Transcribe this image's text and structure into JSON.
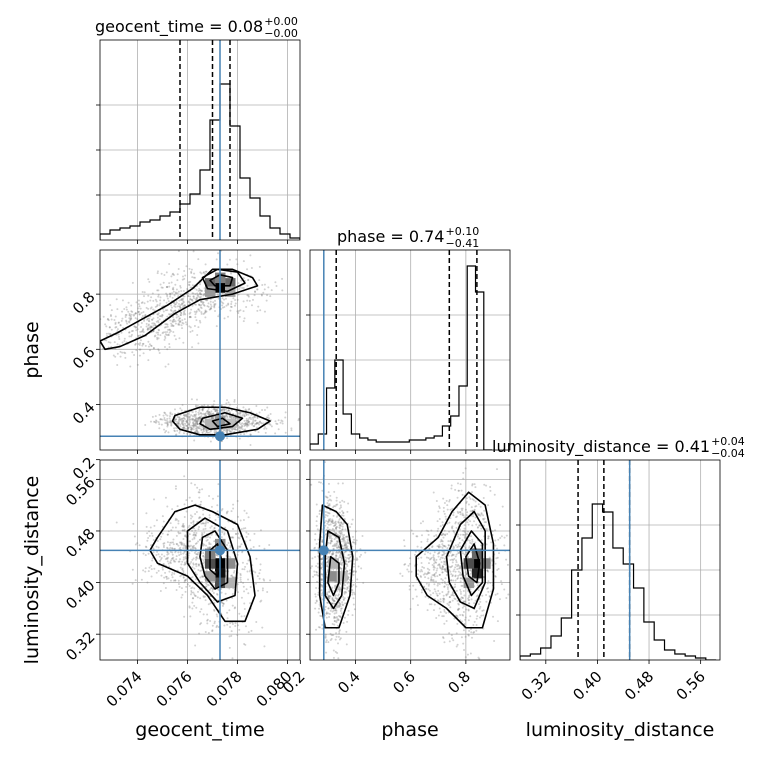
{
  "chart_data": {
    "type": "corner",
    "parameters": [
      "geocent_time",
      "phase",
      "luminosity_distance"
    ],
    "truth_color": "#4682b4",
    "truths": {
      "geocent_time": 0.0773,
      "phase": 0.285,
      "luminosity_distance": 0.45
    },
    "ranges": {
      "geocent_time": [
        0.0725,
        0.0805
      ],
      "phase": [
        0.235,
        0.96
      ],
      "luminosity_distance": [
        0.28,
        0.59
      ]
    },
    "ticks": {
      "geocent_time": [
        0.074,
        0.076,
        0.078,
        0.08
      ],
      "phase": [
        0.2,
        0.4,
        0.6,
        0.8
      ],
      "luminosity_distance": [
        0.32,
        0.4,
        0.48,
        0.56
      ]
    },
    "tick_labels": {
      "geocent_time": [
        "0.074",
        "0.076",
        "0.078",
        "0.080"
      ],
      "phase_x": [
        "0.2",
        "0.4",
        "0.6",
        "0.8"
      ],
      "phase_y": [
        "0.2",
        "0.4",
        "0.6",
        "0.8"
      ],
      "luminosity_distance_x": [
        "0.32",
        "0.40",
        "0.48",
        "0.56"
      ],
      "luminosity_distance_y": [
        "0.32",
        "0.40",
        "0.48",
        "0.56"
      ]
    },
    "axis_labels": {
      "geocent_time": "geocent_time",
      "phase": "phase",
      "luminosity_distance": "luminosity_distance"
    },
    "titles": [
      {
        "param": "geocent_time",
        "text": "geocent_time = 0.08",
        "plus": "+0.00",
        "minus": "−0.00"
      },
      {
        "param": "phase",
        "text": "phase = 0.74",
        "plus": "+0.10",
        "minus": "−0.41"
      },
      {
        "param": "luminosity_distance",
        "text": "luminosity_distance = 0.41",
        "plus": "+0.04",
        "minus": "−0.04"
      }
    ],
    "quantiles": {
      "geocent_time": [
        0.0757,
        0.077,
        0.0777
      ],
      "phase": [
        0.33,
        0.74,
        0.84
      ],
      "luminosity_distance": [
        0.37,
        0.41,
        0.45
      ]
    },
    "histograms": {
      "geocent_time": {
        "edges": [
          0.0725,
          0.0729,
          0.0733,
          0.0737,
          0.0741,
          0.0745,
          0.0749,
          0.0753,
          0.0757,
          0.0761,
          0.0765,
          0.0769,
          0.0773,
          0.0777,
          0.0781,
          0.0785,
          0.0789,
          0.0793,
          0.0797,
          0.0801,
          0.0805
        ],
        "counts": [
          3,
          5,
          6,
          7,
          9,
          10,
          12,
          14,
          18,
          23,
          35,
          60,
          78,
          57,
          31,
          21,
          12,
          6,
          3,
          1
        ],
        "ymax": 100
      },
      "phase": {
        "edges": [
          0.235,
          0.265,
          0.295,
          0.325,
          0.355,
          0.385,
          0.415,
          0.445,
          0.475,
          0.505,
          0.535,
          0.565,
          0.595,
          0.625,
          0.655,
          0.685,
          0.715,
          0.745,
          0.775,
          0.805,
          0.835,
          0.865,
          0.895
        ],
        "counts": [
          3,
          8,
          31,
          45,
          18,
          8,
          6,
          5,
          4,
          4,
          4,
          4,
          5,
          5,
          6,
          7,
          12,
          17,
          32,
          92,
          79,
          0
        ],
        "ymax": 100
      },
      "luminosity_distance": {
        "edges": [
          0.28,
          0.296,
          0.312,
          0.328,
          0.344,
          0.36,
          0.376,
          0.392,
          0.408,
          0.424,
          0.44,
          0.456,
          0.472,
          0.488,
          0.504,
          0.52,
          0.536,
          0.552,
          0.568,
          0.584
        ],
        "counts": [
          2,
          3,
          6,
          12,
          21,
          45,
          61,
          78,
          74,
          56,
          48,
          36,
          19,
          10,
          5,
          3,
          2,
          1,
          0
        ],
        "ymax": 100
      }
    },
    "contours": {
      "geocent_time|phase": [
        [
          [
            0.0725,
            0.63
          ],
          [
            0.0732,
            0.66
          ],
          [
            0.0742,
            0.71
          ],
          [
            0.0752,
            0.76
          ],
          [
            0.0762,
            0.82
          ],
          [
            0.077,
            0.89
          ],
          [
            0.0778,
            0.89
          ],
          [
            0.0786,
            0.86
          ],
          [
            0.0788,
            0.83
          ],
          [
            0.0778,
            0.8
          ],
          [
            0.0765,
            0.78
          ],
          [
            0.0755,
            0.73
          ],
          [
            0.0743,
            0.65
          ],
          [
            0.0733,
            0.61
          ],
          [
            0.0727,
            0.6
          ]
        ],
        [
          [
            0.0766,
            0.86
          ],
          [
            0.0772,
            0.89
          ],
          [
            0.078,
            0.88
          ],
          [
            0.0783,
            0.84
          ],
          [
            0.0776,
            0.81
          ],
          [
            0.0768,
            0.82
          ]
        ],
        [
          [
            0.0769,
            0.85
          ],
          [
            0.0773,
            0.87
          ],
          [
            0.0778,
            0.86
          ],
          [
            0.0777,
            0.83
          ],
          [
            0.0771,
            0.83
          ]
        ],
        [
          [
            0.0755,
            0.36
          ],
          [
            0.0765,
            0.39
          ],
          [
            0.0775,
            0.39
          ],
          [
            0.0785,
            0.37
          ],
          [
            0.0793,
            0.34
          ],
          [
            0.0788,
            0.31
          ],
          [
            0.0775,
            0.29
          ],
          [
            0.0765,
            0.29
          ],
          [
            0.0757,
            0.31
          ],
          [
            0.0754,
            0.34
          ]
        ],
        [
          [
            0.0766,
            0.35
          ],
          [
            0.0775,
            0.37
          ],
          [
            0.0782,
            0.35
          ],
          [
            0.0778,
            0.32
          ],
          [
            0.0769,
            0.31
          ],
          [
            0.0765,
            0.33
          ]
        ],
        [
          [
            0.077,
            0.34
          ],
          [
            0.0774,
            0.35
          ],
          [
            0.0777,
            0.33
          ],
          [
            0.0772,
            0.32
          ]
        ]
      ],
      "geocent_time|luminosity_distance": [
        [
          [
            0.0748,
            0.47
          ],
          [
            0.0755,
            0.51
          ],
          [
            0.0763,
            0.52
          ],
          [
            0.077,
            0.51
          ],
          [
            0.078,
            0.49
          ],
          [
            0.0785,
            0.44
          ],
          [
            0.0787,
            0.38
          ],
          [
            0.0783,
            0.34
          ],
          [
            0.0775,
            0.34
          ],
          [
            0.0768,
            0.38
          ],
          [
            0.076,
            0.41
          ],
          [
            0.0748,
            0.43
          ],
          [
            0.0745,
            0.45
          ]
        ],
        [
          [
            0.076,
            0.48
          ],
          [
            0.0767,
            0.5
          ],
          [
            0.0776,
            0.48
          ],
          [
            0.078,
            0.43
          ],
          [
            0.0779,
            0.38
          ],
          [
            0.0772,
            0.37
          ],
          [
            0.0765,
            0.4
          ],
          [
            0.076,
            0.43
          ]
        ],
        [
          [
            0.0766,
            0.47
          ],
          [
            0.0771,
            0.48
          ],
          [
            0.0776,
            0.45
          ],
          [
            0.0776,
            0.4
          ],
          [
            0.0771,
            0.39
          ],
          [
            0.0767,
            0.41
          ],
          [
            0.0765,
            0.44
          ]
        ],
        [
          [
            0.0769,
            0.45
          ],
          [
            0.0772,
            0.46
          ],
          [
            0.0774,
            0.43
          ],
          [
            0.0772,
            0.41
          ],
          [
            0.0769,
            0.42
          ]
        ]
      ],
      "phase|luminosity_distance": [
        [
          [
            0.28,
            0.52
          ],
          [
            0.33,
            0.51
          ],
          [
            0.37,
            0.49
          ],
          [
            0.39,
            0.44
          ],
          [
            0.38,
            0.38
          ],
          [
            0.34,
            0.33
          ],
          [
            0.29,
            0.33
          ],
          [
            0.27,
            0.38
          ],
          [
            0.27,
            0.46
          ]
        ],
        [
          [
            0.3,
            0.48
          ],
          [
            0.34,
            0.47
          ],
          [
            0.36,
            0.43
          ],
          [
            0.35,
            0.38
          ],
          [
            0.32,
            0.36
          ],
          [
            0.29,
            0.38
          ],
          [
            0.29,
            0.44
          ]
        ],
        [
          [
            0.31,
            0.44
          ],
          [
            0.34,
            0.43
          ],
          [
            0.34,
            0.4
          ],
          [
            0.32,
            0.38
          ],
          [
            0.3,
            0.4
          ]
        ],
        [
          [
            0.62,
            0.44
          ],
          [
            0.7,
            0.47
          ],
          [
            0.75,
            0.51
          ],
          [
            0.81,
            0.54
          ],
          [
            0.87,
            0.52
          ],
          [
            0.9,
            0.46
          ],
          [
            0.9,
            0.39
          ],
          [
            0.86,
            0.33
          ],
          [
            0.8,
            0.33
          ],
          [
            0.73,
            0.36
          ],
          [
            0.66,
            0.38
          ],
          [
            0.62,
            0.41
          ]
        ],
        [
          [
            0.73,
            0.44
          ],
          [
            0.78,
            0.49
          ],
          [
            0.83,
            0.51
          ],
          [
            0.87,
            0.48
          ],
          [
            0.87,
            0.4
          ],
          [
            0.83,
            0.36
          ],
          [
            0.78,
            0.37
          ],
          [
            0.74,
            0.4
          ]
        ],
        [
          [
            0.78,
            0.45
          ],
          [
            0.82,
            0.48
          ],
          [
            0.86,
            0.46
          ],
          [
            0.86,
            0.4
          ],
          [
            0.82,
            0.38
          ],
          [
            0.79,
            0.41
          ]
        ],
        [
          [
            0.8,
            0.44
          ],
          [
            0.83,
            0.46
          ],
          [
            0.85,
            0.43
          ],
          [
            0.84,
            0.4
          ],
          [
            0.81,
            0.41
          ]
        ]
      ]
    },
    "density_cells": {
      "geocent_time|phase": [
        [
          0.0773,
          0.825,
          1.0
        ],
        [
          0.0769,
          0.84,
          0.6
        ],
        [
          0.0777,
          0.84,
          0.6
        ],
        [
          0.0773,
          0.86,
          0.5
        ],
        [
          0.0769,
          0.81,
          0.4
        ],
        [
          0.0777,
          0.81,
          0.35
        ],
        [
          0.0773,
          0.34,
          0.4
        ],
        [
          0.0769,
          0.33,
          0.3
        ],
        [
          0.0777,
          0.33,
          0.25
        ]
      ],
      "geocent_time|luminosity_distance": [
        [
          0.0773,
          0.43,
          1.0
        ],
        [
          0.0773,
          0.415,
          0.95
        ],
        [
          0.0769,
          0.43,
          0.7
        ],
        [
          0.0773,
          0.4,
          0.7
        ],
        [
          0.0769,
          0.445,
          0.5
        ],
        [
          0.0777,
          0.43,
          0.45
        ],
        [
          0.0773,
          0.46,
          0.45
        ],
        [
          0.0769,
          0.41,
          0.4
        ],
        [
          0.0777,
          0.4,
          0.3
        ]
      ],
      "phase|luminosity_distance": [
        [
          0.84,
          0.43,
          1.0
        ],
        [
          0.84,
          0.415,
          0.85
        ],
        [
          0.81,
          0.43,
          0.7
        ],
        [
          0.87,
          0.43,
          0.5
        ],
        [
          0.84,
          0.445,
          0.6
        ],
        [
          0.81,
          0.4,
          0.4
        ],
        [
          0.32,
          0.41,
          0.45
        ],
        [
          0.32,
          0.43,
          0.3
        ],
        [
          0.35,
          0.41,
          0.25
        ]
      ]
    },
    "grid": true,
    "scatter": "grey sample points"
  }
}
